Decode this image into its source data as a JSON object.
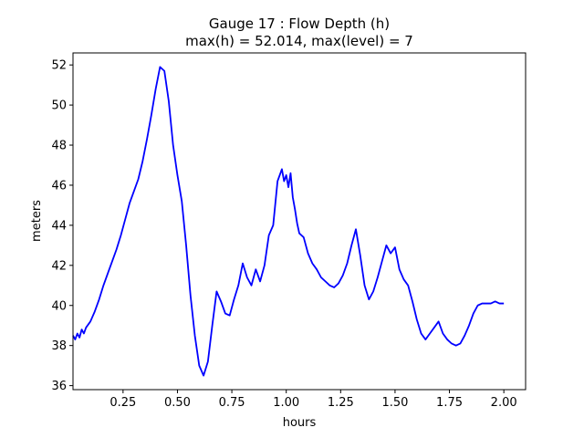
{
  "chart_data": {
    "type": "line",
    "title_line1": "Gauge 17 : Flow Depth (h)",
    "title_line2": "max(h) =  52.014,    max(level) = 7",
    "xlabel": "hours",
    "ylabel": "meters",
    "xlim": [
      0.02,
      2.1
    ],
    "ylim": [
      35.8,
      52.6
    ],
    "xticks": [
      0.25,
      0.5,
      0.75,
      1.0,
      1.25,
      1.5,
      1.75,
      2.0
    ],
    "xtick_labels": [
      "0.25",
      "0.50",
      "0.75",
      "1.00",
      "1.25",
      "1.50",
      "1.75",
      "2.00"
    ],
    "yticks": [
      36,
      38,
      40,
      42,
      44,
      46,
      48,
      50,
      52
    ],
    "ytick_labels": [
      "36",
      "38",
      "40",
      "42",
      "44",
      "46",
      "48",
      "50",
      "52"
    ],
    "grid": false,
    "series": [
      {
        "color": "#0000ff",
        "x": [
          0.02,
          0.03,
          0.04,
          0.05,
          0.06,
          0.07,
          0.08,
          0.1,
          0.12,
          0.14,
          0.16,
          0.18,
          0.2,
          0.22,
          0.24,
          0.26,
          0.28,
          0.3,
          0.32,
          0.34,
          0.36,
          0.38,
          0.4,
          0.42,
          0.44,
          0.46,
          0.48,
          0.5,
          0.52,
          0.54,
          0.56,
          0.58,
          0.6,
          0.62,
          0.64,
          0.66,
          0.68,
          0.7,
          0.72,
          0.74,
          0.76,
          0.78,
          0.8,
          0.82,
          0.84,
          0.86,
          0.88,
          0.9,
          0.92,
          0.94,
          0.96,
          0.98,
          0.99,
          1.0,
          1.01,
          1.02,
          1.03,
          1.04,
          1.05,
          1.06,
          1.08,
          1.1,
          1.12,
          1.14,
          1.16,
          1.18,
          1.2,
          1.22,
          1.24,
          1.26,
          1.28,
          1.3,
          1.32,
          1.34,
          1.36,
          1.38,
          1.4,
          1.42,
          1.44,
          1.46,
          1.48,
          1.5,
          1.52,
          1.54,
          1.56,
          1.58,
          1.6,
          1.62,
          1.64,
          1.66,
          1.68,
          1.7,
          1.72,
          1.74,
          1.76,
          1.78,
          1.8,
          1.82,
          1.84,
          1.86,
          1.88,
          1.9,
          1.92,
          1.94,
          1.96,
          1.98,
          2.0
        ],
        "y": [
          38.5,
          38.3,
          38.6,
          38.4,
          38.8,
          38.6,
          38.9,
          39.2,
          39.7,
          40.3,
          41.0,
          41.6,
          42.2,
          42.8,
          43.5,
          44.3,
          45.1,
          45.7,
          46.3,
          47.2,
          48.3,
          49.5,
          50.8,
          51.9,
          51.7,
          50.2,
          48.0,
          46.5,
          45.2,
          43.0,
          40.5,
          38.5,
          37.0,
          36.5,
          37.2,
          39.0,
          40.7,
          40.2,
          39.6,
          39.5,
          40.3,
          41.0,
          42.1,
          41.4,
          41.0,
          41.8,
          41.2,
          42.0,
          43.5,
          44.0,
          46.2,
          46.8,
          46.2,
          46.5,
          45.9,
          46.6,
          45.4,
          44.8,
          44.1,
          43.6,
          43.4,
          42.6,
          42.1,
          41.8,
          41.4,
          41.2,
          41.0,
          40.9,
          41.1,
          41.5,
          42.1,
          43.0,
          43.8,
          42.5,
          41.0,
          40.3,
          40.7,
          41.4,
          42.2,
          43.0,
          42.6,
          42.9,
          41.8,
          41.3,
          41.0,
          40.2,
          39.3,
          38.6,
          38.3,
          38.6,
          38.9,
          39.2,
          38.6,
          38.3,
          38.1,
          38.0,
          38.1,
          38.5,
          39.0,
          39.6,
          40.0,
          40.1,
          40.1,
          40.1,
          40.2,
          40.1,
          40.1
        ]
      }
    ]
  }
}
